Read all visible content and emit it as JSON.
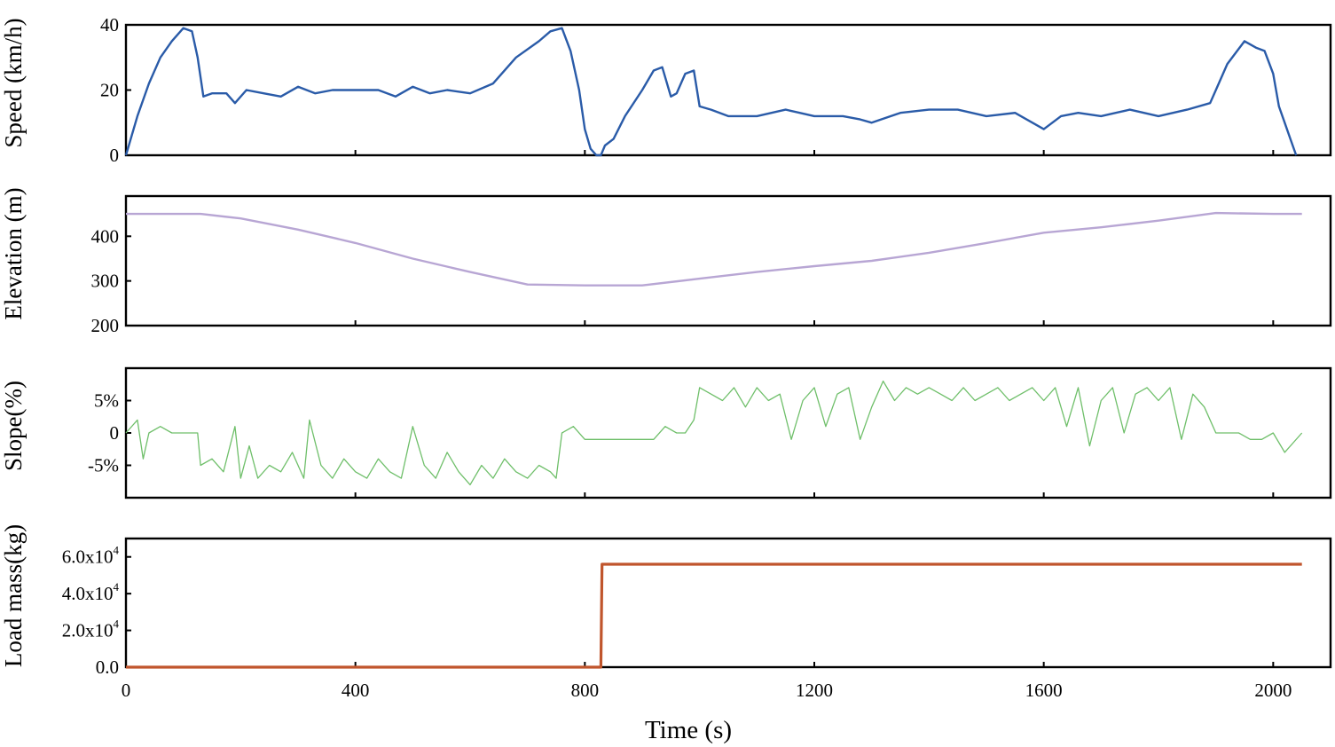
{
  "chart_data": [
    {
      "type": "line",
      "panel": "speed",
      "ylabel": "Speed (km/h)",
      "ylim": [
        0,
        40
      ],
      "yticks": [
        0,
        20,
        40
      ],
      "ytick_labels": [
        "0",
        "20",
        "40"
      ],
      "xlim": [
        0,
        2100
      ],
      "color": "#2a5ba8",
      "series": [
        {
          "name": "Speed",
          "x": [
            0,
            20,
            40,
            60,
            80,
            100,
            115,
            125,
            135,
            150,
            175,
            190,
            210,
            240,
            270,
            300,
            330,
            360,
            400,
            440,
            470,
            500,
            530,
            560,
            600,
            640,
            680,
            720,
            740,
            760,
            775,
            790,
            800,
            810,
            820,
            828,
            835,
            850,
            870,
            900,
            920,
            935,
            950,
            960,
            975,
            990,
            1000,
            1020,
            1050,
            1100,
            1150,
            1200,
            1250,
            1280,
            1300,
            1350,
            1400,
            1450,
            1500,
            1550,
            1600,
            1630,
            1660,
            1700,
            1750,
            1800,
            1850,
            1890,
            1900,
            1920,
            1950,
            1970,
            1985,
            2000,
            2010,
            2020,
            2030,
            2040
          ],
          "y": [
            0,
            12,
            22,
            30,
            35,
            39,
            38,
            30,
            18,
            19,
            19,
            16,
            20,
            19,
            18,
            21,
            19,
            20,
            20,
            20,
            18,
            21,
            19,
            20,
            19,
            22,
            30,
            35,
            38,
            39,
            32,
            20,
            8,
            2,
            0,
            0,
            3,
            5,
            12,
            20,
            26,
            27,
            18,
            19,
            25,
            26,
            15,
            14,
            12,
            12,
            14,
            12,
            12,
            11,
            10,
            13,
            14,
            14,
            12,
            13,
            8,
            12,
            13,
            12,
            14,
            12,
            14,
            16,
            20,
            28,
            35,
            33,
            32,
            25,
            15,
            10,
            5,
            0
          ]
        }
      ]
    },
    {
      "type": "line",
      "panel": "elevation",
      "ylabel": "Elevation (m)",
      "ylim": [
        200,
        490
      ],
      "yticks": [
        200,
        300,
        400
      ],
      "ytick_labels": [
        "200",
        "300",
        "400"
      ],
      "xlim": [
        0,
        2100
      ],
      "color": "#b8a6d4",
      "series": [
        {
          "name": "Elevation",
          "x": [
            0,
            130,
            200,
            300,
            400,
            500,
            600,
            700,
            800,
            900,
            1000,
            1100,
            1200,
            1300,
            1400,
            1500,
            1600,
            1700,
            1800,
            1900,
            2000,
            2050
          ],
          "y": [
            450,
            450,
            440,
            415,
            385,
            350,
            320,
            292,
            290,
            290,
            305,
            320,
            333,
            345,
            363,
            385,
            408,
            420,
            435,
            452,
            450,
            450
          ]
        }
      ]
    },
    {
      "type": "line",
      "panel": "slope",
      "ylabel": "Slope(%)",
      "ylim": [
        -10,
        10
      ],
      "yticks": [
        -5,
        0,
        5
      ],
      "ytick_labels": [
        "-5%",
        "0",
        "5%"
      ],
      "xlim": [
        0,
        2100
      ],
      "color": "#6fbf6a",
      "series": [
        {
          "name": "Slope",
          "x": [
            0,
            20,
            30,
            40,
            60,
            80,
            100,
            125,
            130,
            150,
            170,
            190,
            200,
            215,
            230,
            250,
            270,
            290,
            310,
            320,
            340,
            360,
            380,
            400,
            420,
            440,
            460,
            480,
            500,
            520,
            540,
            560,
            580,
            600,
            620,
            640,
            660,
            680,
            700,
            720,
            740,
            750,
            760,
            780,
            800,
            820,
            840,
            860,
            880,
            900,
            920,
            940,
            960,
            975,
            990,
            1000,
            1020,
            1040,
            1060,
            1080,
            1100,
            1120,
            1140,
            1160,
            1180,
            1200,
            1220,
            1240,
            1260,
            1280,
            1300,
            1320,
            1340,
            1360,
            1380,
            1400,
            1420,
            1440,
            1460,
            1480,
            1500,
            1520,
            1540,
            1560,
            1580,
            1600,
            1620,
            1640,
            1660,
            1680,
            1700,
            1720,
            1740,
            1760,
            1780,
            1800,
            1820,
            1840,
            1860,
            1880,
            1900,
            1920,
            1940,
            1960,
            1980,
            2000,
            2020,
            2050
          ],
          "y": [
            0,
            2,
            -4,
            0,
            1,
            0,
            0,
            0,
            -5,
            -4,
            -6,
            1,
            -7,
            -2,
            -7,
            -5,
            -6,
            -3,
            -7,
            2,
            -5,
            -7,
            -4,
            -6,
            -7,
            -4,
            -6,
            -7,
            1,
            -5,
            -7,
            -3,
            -6,
            -8,
            -5,
            -7,
            -4,
            -6,
            -7,
            -5,
            -6,
            -7,
            0,
            1,
            -1,
            -1,
            -1,
            -1,
            -1,
            -1,
            -1,
            1,
            0,
            0,
            2,
            7,
            6,
            5,
            7,
            4,
            7,
            5,
            6,
            -1,
            5,
            7,
            1,
            6,
            7,
            -1,
            4,
            8,
            5,
            7,
            6,
            7,
            6,
            5,
            7,
            5,
            6,
            7,
            5,
            6,
            7,
            5,
            7,
            1,
            7,
            -2,
            5,
            7,
            0,
            6,
            7,
            5,
            7,
            -1,
            6,
            4,
            0,
            0,
            0,
            -1,
            -1,
            0,
            -3,
            0
          ]
        }
      ]
    },
    {
      "type": "line",
      "panel": "load",
      "ylabel": "Load mass(kg)",
      "ylim": [
        0,
        70000
      ],
      "yticks": [
        0,
        20000,
        40000,
        60000
      ],
      "ytick_labels": [
        "0.0",
        "2.0x10",
        "4.0x10",
        "6.0x10"
      ],
      "ytick_sups": [
        "",
        "4",
        "4",
        "4"
      ],
      "xlim": [
        0,
        2100
      ],
      "color": "#c0552c",
      "series": [
        {
          "name": "Load mass",
          "x": [
            0,
            828,
            830,
            2050
          ],
          "y": [
            0,
            0,
            56000,
            56000
          ]
        }
      ]
    }
  ],
  "x_axis": {
    "label": "Time (s)",
    "ticks": [
      0,
      400,
      800,
      1200,
      1600,
      2000
    ],
    "tick_labels": [
      "0",
      "400",
      "800",
      "1200",
      "1600",
      "2000"
    ]
  }
}
